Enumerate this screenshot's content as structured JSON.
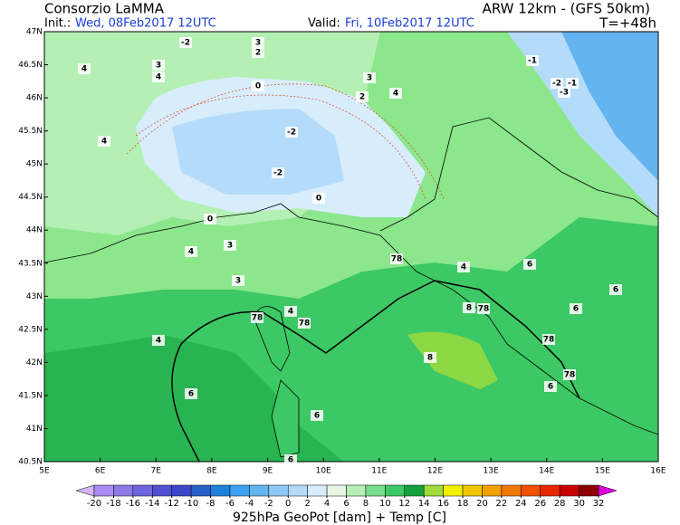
{
  "header": {
    "title": "Consorzio LaMMA",
    "model": "ARW 12km - (GFS 50km)",
    "init_label": "Init.:",
    "init": "Wed, 08Feb2017 12UTC",
    "valid_label": "Valid:",
    "valid": "Fri, 10Feb2017 12UTC",
    "lead": "T=+48h"
  },
  "map": {
    "lat_labels": [
      "47N",
      "46.5N",
      "46N",
      "45.5N",
      "45N",
      "44.5N",
      "44N",
      "43.5N",
      "43N",
      "42.5N",
      "42N",
      "41.5N",
      "41N",
      "40.5N"
    ],
    "lon_labels": [
      "5E",
      "6E",
      "7E",
      "8E",
      "9E",
      "10E",
      "11E",
      "12E",
      "13E",
      "14E",
      "15E",
      "16E"
    ],
    "contour_labels": [
      "-2",
      "3",
      "2",
      "4",
      "3",
      "4",
      "-1",
      "-2",
      "-1",
      "-3",
      "0",
      "4",
      "3",
      "2",
      "4",
      "-2",
      "-2",
      "0",
      "0",
      "4",
      "3",
      "3",
      "78",
      "4",
      "6",
      "6",
      "78",
      "4",
      "78",
      "8",
      "78",
      "6",
      "4",
      "8",
      "78",
      "78",
      "6",
      "6",
      "6",
      "6"
    ]
  },
  "colorbar": {
    "ticks": [
      -20,
      -18,
      -16,
      -14,
      -12,
      -10,
      -8,
      -6,
      -4,
      -2,
      0,
      2,
      4,
      6,
      8,
      10,
      12,
      14,
      16,
      18,
      20,
      22,
      24,
      26,
      28,
      30,
      32
    ],
    "colors": [
      "#d2b4f5",
      "#a88cf0",
      "#8c78e6",
      "#6e64dc",
      "#5050d2",
      "#3c46c8",
      "#2860c8",
      "#1e82dc",
      "#3ca0f0",
      "#64b4f0",
      "#8cc8f5",
      "#b4dcfa",
      "#d7edfc",
      "#e6f7e6",
      "#b4f0b4",
      "#78dc8c",
      "#3cc864",
      "#14a03c",
      "#a0dc3c",
      "#f0f000",
      "#f0c800",
      "#f0a000",
      "#f07800",
      "#f05000",
      "#e62800",
      "#c80000",
      "#8c0000",
      "#dc00dc"
    ]
  },
  "footer": "925hPa GeoPot [dam] + Temp [C]"
}
